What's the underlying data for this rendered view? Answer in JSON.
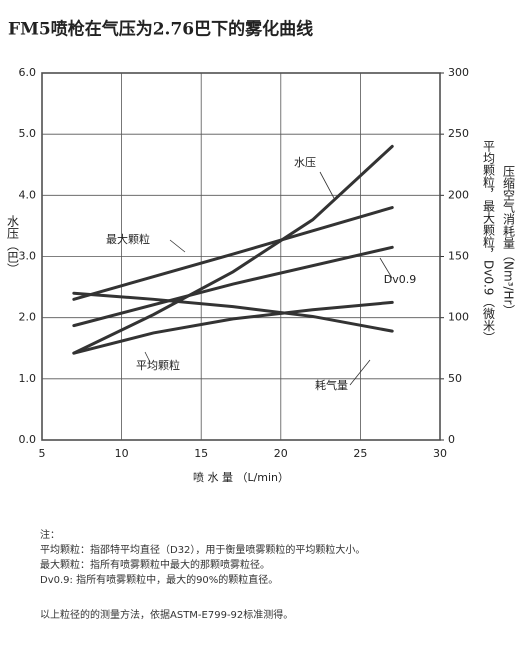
{
  "chart_data": {
    "type": "line",
    "title": "FM5喷枪在气压为2.76巴下的雾化曲线",
    "x_label": "喷 水 量 （L/min）",
    "y_label": "水压（巴）",
    "y2_labels": [
      "压缩空气消耗量（Nm³/Hr）",
      "平均颗粒，最大颗粒，Dv0.9（微米）"
    ],
    "xlim": [
      5,
      30
    ],
    "xticks": [
      5,
      10,
      15,
      20,
      25,
      30
    ],
    "ylim": [
      0,
      6
    ],
    "yticks": [
      {
        "value": 0,
        "label": "0.0"
      },
      {
        "value": 1,
        "label": "1.0"
      },
      {
        "value": 2,
        "label": "2.0"
      },
      {
        "value": 3,
        "label": "3.0"
      },
      {
        "value": 4,
        "label": "4.0"
      },
      {
        "value": 5,
        "label": "5.0"
      },
      {
        "value": 6,
        "label": "6.0"
      }
    ],
    "y2lim": [
      0,
      300
    ],
    "y2ticks": [
      0,
      50,
      100,
      150,
      200,
      250,
      300
    ],
    "grid": true,
    "color": "#333333",
    "series": [
      {
        "name": "水压",
        "x": [
          7,
          12,
          17,
          22,
          27
        ],
        "values": [
          1.42,
          2.05,
          2.75,
          3.6,
          4.8
        ]
      },
      {
        "name": "最大颗粒",
        "axis": "y2",
        "x": [
          7,
          17,
          27
        ],
        "values": [
          115,
          152,
          190
        ]
      },
      {
        "name": "Dv0.9",
        "axis": "y2",
        "x": [
          7,
          17,
          27
        ],
        "values": [
          93.5,
          127.5,
          157.5
        ]
      },
      {
        "name": "平均颗粒",
        "axis": "y2",
        "x": [
          7,
          12,
          17,
          22,
          27
        ],
        "values": [
          71,
          87.5,
          99,
          106.5,
          112.5
        ]
      },
      {
        "name": "耗气量",
        "axis": "y2",
        "x": [
          7,
          12,
          17,
          22,
          27
        ],
        "values": [
          120,
          115,
          109,
          101,
          89
        ]
      }
    ],
    "notes": [
      "注：",
      "平均颗粒：指邵特平均直径（D32），用于衡量喷雾颗粒的平均颗粒大小。",
      "最大颗粒：指所有喷雾颗粒中最大的那颗喷雾粒径。",
      "Dv0.9:      指所有喷雾颗粒中，最大的90%的颗粒直径。",
      "以上粒径的的测量方法，依据ASTM-E799-92标准测得。"
    ]
  }
}
